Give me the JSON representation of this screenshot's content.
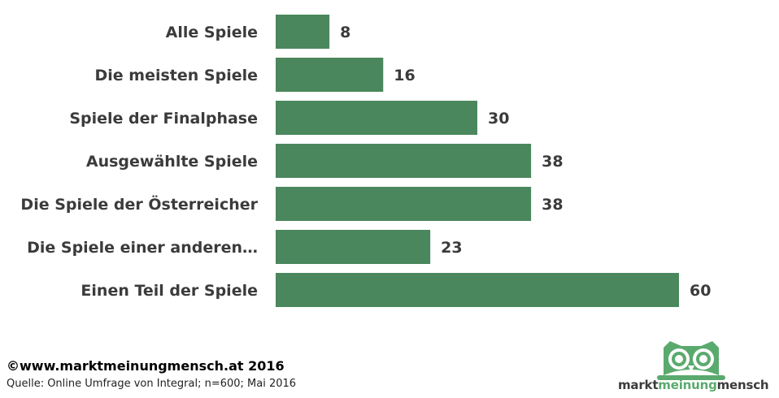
{
  "chart_data": {
    "type": "bar",
    "orientation": "horizontal",
    "categories": [
      "Alle Spiele",
      "Die meisten Spiele",
      "Spiele der Finalphase",
      "Ausgewählte Spiele",
      "Die Spiele der Österreicher",
      "Die Spiele einer anderen…",
      "Einen Teil der Spiele"
    ],
    "values": [
      8,
      16,
      30,
      38,
      38,
      23,
      60
    ],
    "bar_color": "#4a875d",
    "xlim": [
      0,
      60
    ],
    "grid": false,
    "legend": "none"
  },
  "footer": {
    "copyright": "©www.marktmeinungmensch.at 2016",
    "source": "Quelle: Online Umfrage von Integral; n=600; Mai 2016"
  },
  "logo": {
    "part1": "markt",
    "part2": "meinung",
    "part3": "mensch",
    "icon": "owl-icon",
    "accent_color": "#5aaa6e"
  }
}
